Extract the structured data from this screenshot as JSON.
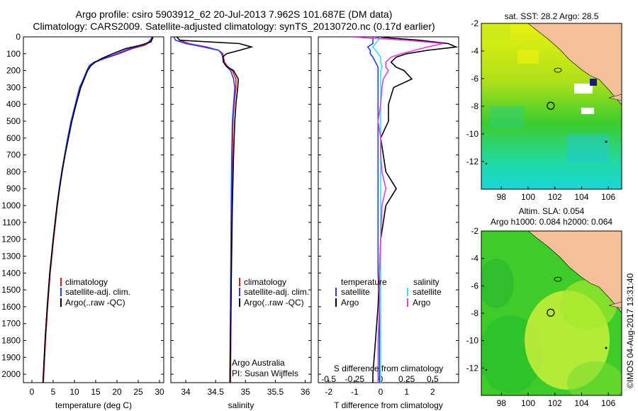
{
  "title_line1": "Argo profile: csiro 5903912_62 20-Jul-2013 7.962S 101.687E (DM data)",
  "title_line2": "Climatology: CARS2009. Satellite-adjusted climatology: synTS_20130720.nc (0.17d earlier)",
  "colors": {
    "red": "#e41a1c",
    "blue": "#1f3cff",
    "black": "#000000",
    "cyan": "#33e0f0",
    "magenta": "#e040e0",
    "land": "#f4c09a"
  },
  "chart_data": [
    {
      "type": "line",
      "name": "temperature",
      "xlabel": "temperature (deg C)",
      "xlim": [
        -2,
        31
      ],
      "ylim": [
        2050,
        0
      ],
      "xticks": [
        0,
        5,
        10,
        15,
        20,
        25,
        30
      ],
      "yticks": [
        0,
        100,
        200,
        300,
        400,
        500,
        600,
        700,
        800,
        900,
        1000,
        1100,
        1200,
        1300,
        1400,
        1500,
        1600,
        1700,
        1800,
        1900,
        2000
      ],
      "legend": [
        "climatology",
        "satellite-adj. clim.",
        "Argo(..raw -QC)"
      ],
      "legend_position": "lower-center",
      "depth": [
        0,
        10,
        30,
        50,
        70,
        100,
        130,
        150,
        170,
        200,
        250,
        300,
        400,
        500,
        600,
        700,
        800,
        900,
        1000,
        1200,
        1400,
        1600,
        1800,
        2000,
        2050
      ],
      "series": [
        {
          "name": "climatology",
          "color": "red",
          "values": [
            28.5,
            28.4,
            27.8,
            26.5,
            23.5,
            20.5,
            17.0,
            14.8,
            13.6,
            13.0,
            12.2,
            11.3,
            10.3,
            9.3,
            8.5,
            7.8,
            7.1,
            6.5,
            6.0,
            5.1,
            4.3,
            3.7,
            3.2,
            2.8,
            2.7
          ]
        },
        {
          "name": "satellite-adj. clim.",
          "color": "blue",
          "values": [
            28.2,
            28.1,
            27.5,
            26.0,
            23.0,
            20.0,
            16.8,
            14.6,
            13.5,
            12.9,
            12.1,
            11.2,
            10.2,
            9.2,
            8.4,
            7.7,
            7.0,
            6.4,
            5.9,
            5.0,
            4.2,
            3.6,
            3.1,
            2.7,
            2.6
          ]
        },
        {
          "name": "Argo(..raw -QC)",
          "color": "black",
          "values": [
            28.3,
            28.3,
            28.0,
            25.5,
            22.0,
            19.0,
            16.3,
            14.9,
            13.9,
            13.1,
            12.3,
            11.5,
            10.4,
            9.4,
            8.6,
            7.8,
            7.1,
            6.5,
            5.9,
            5.0,
            4.2,
            3.6,
            3.1,
            2.7,
            2.6
          ]
        }
      ]
    },
    {
      "type": "line",
      "name": "salinity",
      "xlabel": "salinity",
      "xlim": [
        33.75,
        36.1
      ],
      "ylim": [
        2050,
        0
      ],
      "xticks": [
        34,
        34.5,
        35,
        35.5,
        36
      ],
      "legend": [
        "climatology",
        "satellite-adj. clim.",
        "Argo(..raw -QC)"
      ],
      "legend_position": "lower-right",
      "annotation": [
        "Argo Australia",
        "PI: Susan Wijffels"
      ],
      "depth": [
        0,
        20,
        40,
        60,
        80,
        100,
        120,
        150,
        175,
        200,
        250,
        300,
        400,
        500,
        700,
        1000,
        1500,
        2000,
        2050
      ],
      "series": [
        {
          "name": "climatology",
          "color": "red",
          "values": [
            33.85,
            33.9,
            34.05,
            34.35,
            34.55,
            34.62,
            34.63,
            34.65,
            34.7,
            34.78,
            34.84,
            34.84,
            34.81,
            34.79,
            34.78,
            34.77,
            34.76,
            34.75,
            34.75
          ]
        },
        {
          "name": "satellite-adj. clim.",
          "color": "blue",
          "values": [
            33.8,
            33.83,
            34.0,
            34.3,
            34.55,
            34.6,
            34.62,
            34.64,
            34.68,
            34.75,
            34.8,
            34.82,
            34.8,
            34.78,
            34.77,
            34.76,
            34.75,
            34.74,
            34.74
          ]
        },
        {
          "name": "Argo(..raw -QC)",
          "color": "black",
          "values": [
            33.85,
            33.9,
            34.9,
            35.1,
            34.9,
            34.68,
            34.62,
            34.63,
            34.68,
            34.8,
            34.88,
            34.87,
            34.84,
            34.82,
            34.8,
            34.78,
            34.76,
            34.74,
            34.74
          ]
        }
      ]
    },
    {
      "type": "line",
      "name": "difference",
      "xlabel": "T difference from climatology",
      "xlabel_top": "S difference from climatology",
      "xlim_T": [
        -2.4,
        3.0
      ],
      "xticks_T": [
        -2,
        -1,
        0,
        1,
        2
      ],
      "xticks_S": [
        "-0.5",
        "-0.25",
        "0",
        "0.25",
        "0.5"
      ],
      "ylim": [
        2050,
        0
      ],
      "legend_temperature_title": "temperature",
      "legend_salinity_title": "salinity",
      "legend": [
        "satellite",
        "Argo",
        "satellite",
        "Argo"
      ],
      "depth": [
        0,
        20,
        40,
        60,
        80,
        100,
        120,
        150,
        180,
        200,
        250,
        300,
        400,
        500,
        600,
        700,
        800,
        900,
        1000,
        1200,
        1400,
        1600,
        1800,
        2000,
        2050
      ],
      "series": [
        {
          "name": "temperature satellite",
          "color": "blue",
          "values": [
            -0.3,
            -0.3,
            -0.3,
            -0.5,
            -0.4,
            -0.4,
            -0.3,
            -0.2,
            -0.1,
            -0.1,
            -0.1,
            -0.1,
            -0.1,
            -0.1,
            -0.1,
            -0.1,
            -0.1,
            -0.1,
            -0.1,
            -0.1,
            -0.1,
            -0.05,
            -0.05,
            -0.05,
            -0.05
          ]
        },
        {
          "name": "temperature Argo",
          "color": "black",
          "values": [
            -0.2,
            1.5,
            2.6,
            2.9,
            1.8,
            1.0,
            0.6,
            0.4,
            0.6,
            0.9,
            1.2,
            0.5,
            0.3,
            0.3,
            0.0,
            0.1,
            0.2,
            0.6,
            0.2,
            0.0,
            -0.05,
            -0.1,
            -0.2,
            -0.3,
            -0.3
          ]
        },
        {
          "name": "salinity satellite",
          "color": "cyan",
          "values": [
            0.0,
            -0.1,
            -0.2,
            -0.3,
            -0.2,
            -0.1,
            0.0,
            0.0,
            0.05,
            0.0,
            0.0,
            0.0,
            0.0,
            0.0,
            0.0,
            0.0,
            0.0,
            0.0,
            0.0,
            0.0,
            0.0,
            0.0,
            0.0,
            0.0,
            0.0
          ]
        },
        {
          "name": "salinity Argo",
          "color": "magenta",
          "values": [
            -1.2,
            1.0,
            2.4,
            1.8,
            1.3,
            0.8,
            0.4,
            0.2,
            0.2,
            0.3,
            0.1,
            0.05,
            0.0,
            -0.1,
            0.0,
            0.0,
            0.05,
            0.2,
            0.05,
            0.0,
            -0.05,
            -0.05,
            -0.1,
            -0.1,
            -0.1
          ]
        }
      ]
    },
    {
      "type": "heatmap",
      "name": "sst-map",
      "title": "sat. SST: 28.2  Argo: 28.5",
      "xticks": [
        98,
        100,
        102,
        104,
        106
      ],
      "yticks": [
        -2,
        -4,
        -6,
        -8,
        -10,
        -12
      ],
      "xlim": [
        96.5,
        107
      ],
      "ylim": [
        -14,
        -2
      ],
      "argo_lon": 101.687,
      "argo_lat": -7.962
    },
    {
      "type": "heatmap",
      "name": "sla-map",
      "title_line1": "Altim. SLA: 0.054",
      "title_line2": "Argo h1000: 0.084  h2000: 0.064",
      "xticks": [
        98,
        100,
        102,
        104,
        106
      ],
      "yticks": [
        -2,
        -4,
        -6,
        -8,
        -10,
        -12
      ],
      "xlim": [
        96.5,
        107
      ],
      "ylim": [
        -14,
        -2
      ],
      "argo_lon": 101.687,
      "argo_lat": -7.962
    }
  ],
  "footer": "©IMOS 04-Aug-2017 13:31:40"
}
